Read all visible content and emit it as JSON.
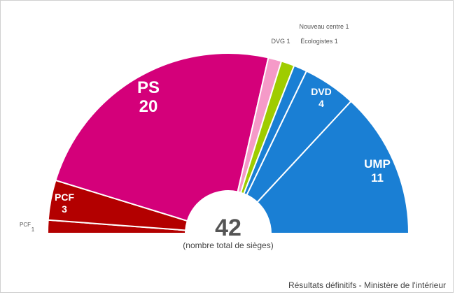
{
  "chart_data": {
    "type": "pie",
    "title": "",
    "categories": [
      "PCF",
      "PCF",
      "PS",
      "DVG",
      "Écologistes",
      "Nouveau centre",
      "DVD",
      "UMP"
    ],
    "series": [
      {
        "values": [
          1,
          3,
          20,
          1,
          1,
          1,
          4,
          11
        ]
      }
    ],
    "label_texts": [
      "PCF",
      "1",
      "PCF",
      "3",
      "PS",
      "20",
      "DVG 1",
      "Écologistes 1",
      "Nouveau centre 1",
      "DVD",
      "4",
      "UMP",
      "11"
    ],
    "colors": [
      "#b30000",
      "#b30000",
      "#d4007a",
      "#f59ac8",
      "#9fcc00",
      "#1a7fd4",
      "#1a7fd4",
      "#1a7fd4"
    ],
    "total": "42",
    "total_caption": "(nombre total de sièges)",
    "source": "Résultats définitifs - Ministère de l'intérieur"
  }
}
